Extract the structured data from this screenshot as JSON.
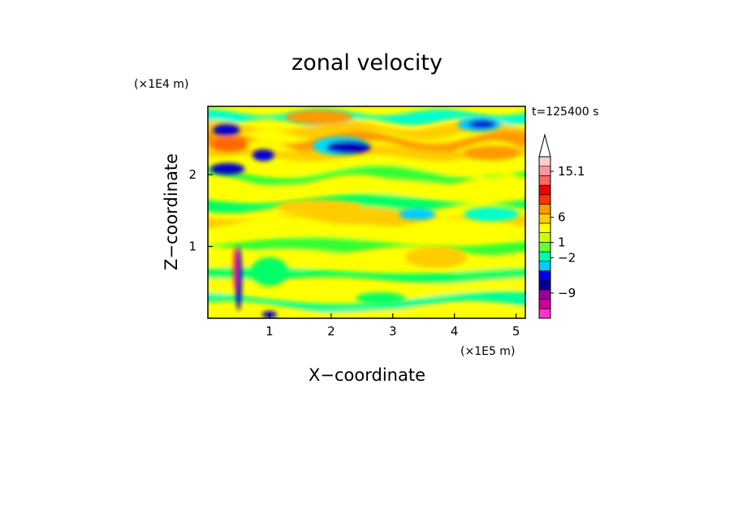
{
  "chart_data": {
    "type": "heatmap",
    "title": "zonal velocity",
    "xlabel": "X−coordinate",
    "ylabel": "Z−coordinate",
    "x_scale_label": "(×1E5 m)",
    "y_scale_label": "(×1E4 m)",
    "time_label": "t=125400 s",
    "xlim": [
      0,
      5.15
    ],
    "ylim": [
      0,
      2.95
    ],
    "x_ticks": [
      "1",
      "2",
      "3",
      "4",
      "5"
    ],
    "y_ticks": [
      "1",
      "2"
    ],
    "colorbar": {
      "labels": [
        "15.1",
        "6",
        "1",
        "−2",
        "−9"
      ],
      "label_values": [
        15.1,
        6,
        1,
        -2,
        -9
      ],
      "colors": [
        "#ff33cc",
        "#cc0099",
        "#990099",
        "#000099",
        "#0000ee",
        "#00ccff",
        "#00ffaa",
        "#66ff33",
        "#ccff00",
        "#ffff00",
        "#ffcc00",
        "#ff9900",
        "#ff3300",
        "#ee0000",
        "#ff6666",
        "#ff9999",
        "#ffcccc"
      ]
    },
    "bands": [
      {
        "z": 2.8,
        "color": "#00ffcc"
      },
      {
        "z": 2.62,
        "color": "#ffcc00"
      },
      {
        "z": 2.45,
        "color": "#ff9900"
      },
      {
        "z": 2.3,
        "color": "#ffcc00"
      },
      {
        "z": 2.12,
        "color": "#ffff00"
      },
      {
        "z": 1.98,
        "color": "#33ff33"
      },
      {
        "z": 1.82,
        "color": "#ffff00"
      },
      {
        "z": 1.6,
        "color": "#00ff66"
      },
      {
        "z": 1.4,
        "color": "#ffcc00"
      },
      {
        "z": 1.2,
        "color": "#ffff00"
      },
      {
        "z": 1.0,
        "color": "#33ff33"
      },
      {
        "z": 0.8,
        "color": "#ffff00"
      },
      {
        "z": 0.6,
        "color": "#00ff66"
      },
      {
        "z": 0.42,
        "color": "#ffff00"
      },
      {
        "z": 0.22,
        "color": "#00ff99"
      },
      {
        "z": 0.05,
        "color": "#ffff00"
      }
    ],
    "blobs": [
      {
        "x": 0.3,
        "z": 2.62,
        "rx": 0.22,
        "rz": 0.08,
        "color": "#0000cc"
      },
      {
        "x": 0.35,
        "z": 2.42,
        "rx": 0.3,
        "rz": 0.1,
        "color": "#ff6600"
      },
      {
        "x": 0.32,
        "z": 2.08,
        "rx": 0.28,
        "rz": 0.08,
        "color": "#0000cc"
      },
      {
        "x": 0.9,
        "z": 2.27,
        "rx": 0.18,
        "rz": 0.08,
        "color": "#0000dd"
      },
      {
        "x": 2.15,
        "z": 2.4,
        "rx": 0.45,
        "rz": 0.13,
        "color": "#00ddff"
      },
      {
        "x": 2.28,
        "z": 2.38,
        "rx": 0.36,
        "rz": 0.09,
        "color": "#0000bb"
      },
      {
        "x": 4.4,
        "z": 2.7,
        "rx": 0.35,
        "rz": 0.1,
        "color": "#00ccff"
      },
      {
        "x": 4.45,
        "z": 2.7,
        "rx": 0.22,
        "rz": 0.06,
        "color": "#0000cc"
      },
      {
        "x": 1.8,
        "z": 2.8,
        "rx": 0.55,
        "rz": 0.1,
        "color": "#ff9900"
      },
      {
        "x": 4.6,
        "z": 2.3,
        "rx": 0.45,
        "rz": 0.1,
        "color": "#ff9900"
      },
      {
        "x": 1.8,
        "z": 1.55,
        "rx": 0.7,
        "rz": 0.1,
        "color": "#ffcc00"
      },
      {
        "x": 3.4,
        "z": 1.45,
        "rx": 0.3,
        "rz": 0.08,
        "color": "#00ccff"
      },
      {
        "x": 4.6,
        "z": 1.45,
        "rx": 0.45,
        "rz": 0.1,
        "color": "#00ffcc"
      },
      {
        "x": 1.0,
        "z": 0.65,
        "rx": 0.3,
        "rz": 0.2,
        "color": "#00ff66"
      },
      {
        "x": 3.7,
        "z": 0.85,
        "rx": 0.5,
        "rz": 0.15,
        "color": "#ffcc00"
      },
      {
        "x": 0.5,
        "z": 0.55,
        "rx": 0.05,
        "rz": 0.45,
        "color": "#0000cc"
      },
      {
        "x": 0.44,
        "z": 0.7,
        "rx": 0.03,
        "rz": 0.3,
        "color": "#ff3300"
      },
      {
        "x": 1.0,
        "z": 0.05,
        "rx": 0.12,
        "rz": 0.05,
        "color": "#0000cc"
      },
      {
        "x": 2.8,
        "z": 0.28,
        "rx": 0.4,
        "rz": 0.08,
        "color": "#00ff66"
      }
    ]
  }
}
